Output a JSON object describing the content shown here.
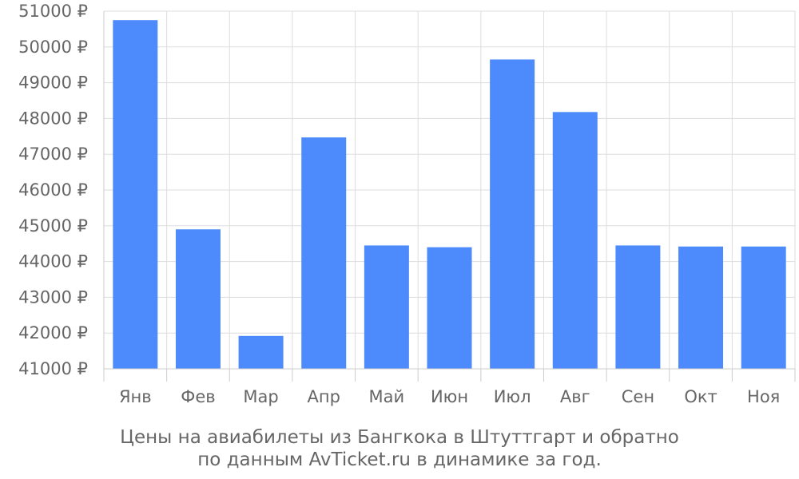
{
  "chart_data": {
    "type": "bar",
    "categories": [
      "Янв",
      "Фев",
      "Мар",
      "Апр",
      "Май",
      "Июн",
      "Июл",
      "Авг",
      "Сен",
      "Окт",
      "Ноя"
    ],
    "values": [
      50750,
      44900,
      41920,
      47470,
      44450,
      44400,
      49650,
      48180,
      44450,
      44420,
      44420
    ],
    "ylim": [
      41000,
      51000
    ],
    "yticks": [
      41000,
      42000,
      43000,
      44000,
      45000,
      46000,
      47000,
      48000,
      49000,
      50000,
      51000
    ],
    "y_tick_suffix": " ₽",
    "grid": true,
    "bar_color": "#4d8afc",
    "grid_color": "#dddddd",
    "title": "",
    "xlabel": "",
    "ylabel": ""
  },
  "caption": {
    "line1": "Цены на авиабилеты из Бангкока в Штуттгарт и обратно",
    "line2": "по данным AvTicket.ru в динамике за год."
  }
}
